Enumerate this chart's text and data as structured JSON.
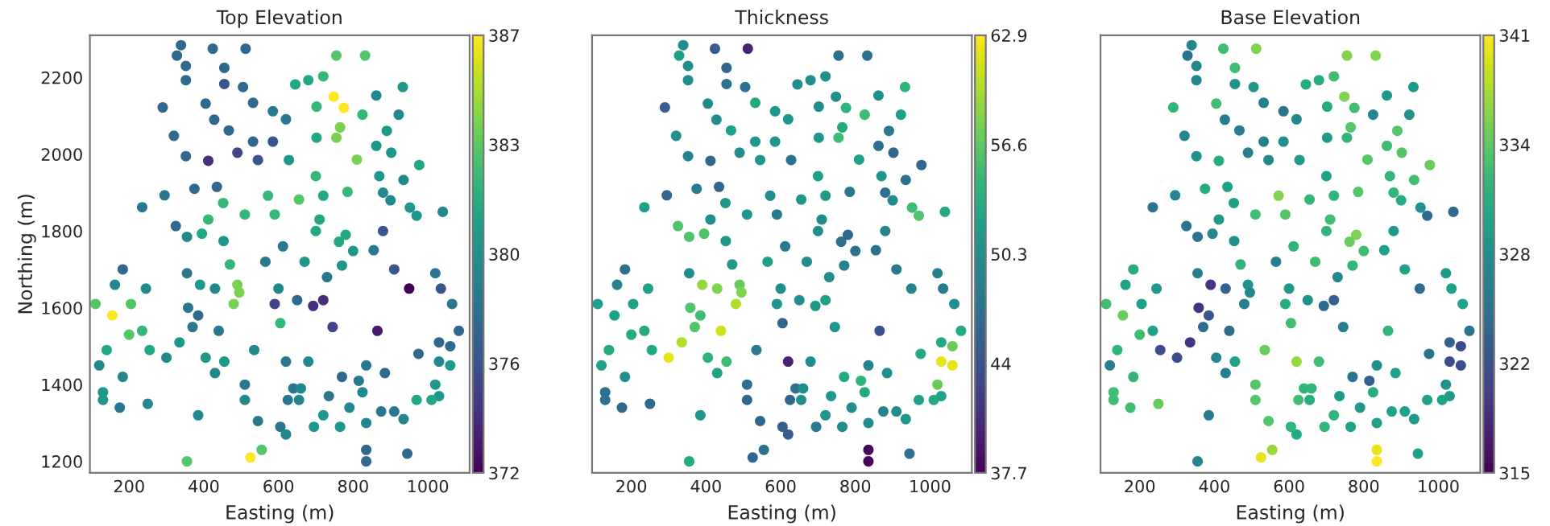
{
  "chart_data": [
    {
      "type": "scatter",
      "title": "Top Elevation",
      "xlabel": "Easting (m)",
      "ylabel": "Northing (m)",
      "x": [
        339,
        424,
        512,
        328,
        755,
        832,
        352,
        455,
        352,
        455,
        505,
        645,
        680,
        720,
        933,
        748,
        862,
        290,
        405,
        532,
        585,
        702,
        775,
        825,
        922,
        428,
        620,
        467,
        320,
        765,
        890,
        755,
        702,
        532,
        585,
        862,
        902,
        412,
        490,
        545,
        628,
        810,
        977,
        352,
        700,
        870,
        935,
        375,
        435,
        295,
        235,
        452,
        572,
        655,
        720,
        785,
        880,
        900,
        952,
        1040,
        970,
        412,
        510,
        590,
        325,
        710,
        355,
        395,
        453,
        612,
        700,
        762,
        780,
        880,
        855,
        800,
        183,
        355,
        470,
        565,
        910,
        1020,
        162,
        390,
        490,
        430,
        495,
        950,
        1035,
        110,
        155,
        205,
        358,
        480,
        590,
        693,
        1065,
        1083,
        200,
        255,
        335,
        300,
        385,
        440,
        605,
        745,
        865,
        1030,
        1060,
        1030,
        1060,
        975,
        140,
        120,
        183,
        405,
        455,
        430,
        535,
        620,
        680,
        835,
        885,
        770,
        815,
        1020,
        1030,
        510,
        640,
        660,
        130,
        130,
        175,
        250,
        510,
        625,
        735,
        655,
        825,
        970,
        1010,
        385,
        545,
        720,
        790,
        875,
        910,
        935,
        835,
        605,
        620,
        695,
        765,
        355,
        525,
        555,
        835,
        835,
        945,
        720,
        600,
        650,
        730,
        770,
        670,
        245,
        235,
        370
      ],
      "values": [
        2284,
        2275,
        2275,
        2257,
        2257,
        2257,
        2230,
        2225,
        2193,
        2183,
        2175,
        2182,
        2193,
        2203,
        2175,
        2150,
        2153,
        2122,
        2132,
        2134,
        2112,
        2124,
        2121,
        2103,
        2103,
        2090,
        2091,
        2062,
        2048,
        2070,
        2061,
        2043,
        2043,
        2033,
        2033,
        2022,
        2004,
        1983,
        2004,
        1985,
        1985,
        1986,
        1972,
        1995,
        1943,
        1943,
        1933,
        1910,
        1915,
        1893,
        1862,
        1873,
        1892,
        1882,
        1892,
        1902,
        1900,
        1880,
        1861,
        1850,
        1840,
        1830,
        1843,
        1843,
        1813,
        1830,
        1785,
        1793,
        1774,
        1760,
        1800,
        1772,
        1790,
        1800,
        1750,
        1748,
        1700,
        1690,
        1713,
        1720,
        1700,
        1690,
        1660,
        1660,
        1660,
        1650,
        1640,
        1650,
        1650,
        1610,
        1580,
        1610,
        1600,
        1610,
        1610,
        1605,
        1610,
        1540,
        1530,
        1490,
        1510,
        1470,
        1580,
        1540,
        1560,
        1550,
        1540,
        1510,
        1500,
        1460,
        1450,
        1480,
        1490,
        1450,
        1420,
        1470,
        1460,
        1430,
        1490,
        1460,
        1460,
        1450,
        1430,
        1420,
        1410,
        1400,
        1370,
        1400,
        1390,
        1390,
        1380,
        1360,
        1340,
        1350,
        1360,
        1360,
        1370,
        1360,
        1380,
        1360,
        1360,
        1320,
        1305,
        1320,
        1340,
        1330,
        1330,
        1310,
        1300,
        1290,
        1270,
        1290,
        1290,
        1200,
        1210,
        1230,
        1230,
        1200,
        1220,
        1620,
        1650,
        1620,
        1680,
        1710,
        1720,
        1650,
        1540,
        1550
      ],
      "cvalues": [
        377,
        377,
        377,
        377,
        383,
        383,
        377,
        377,
        377,
        376,
        377,
        381,
        381,
        382,
        380,
        387,
        379,
        377,
        377,
        377,
        378,
        382,
        387,
        382,
        379,
        377,
        378,
        377,
        377,
        384,
        380,
        384,
        381,
        377,
        376,
        380,
        380,
        374,
        375,
        376,
        380,
        384,
        381,
        377,
        382,
        380,
        379,
        377,
        377,
        378,
        378,
        382,
        382,
        383,
        381,
        382,
        379,
        379,
        380,
        379,
        380,
        382,
        382,
        382,
        377,
        381,
        379,
        381,
        380,
        378,
        381,
        381,
        381,
        376,
        378,
        380,
        377,
        378,
        382,
        378,
        376,
        378,
        379,
        380,
        384,
        379,
        384,
        372,
        376,
        383,
        387,
        383,
        378,
        384,
        375,
        374,
        378,
        377,
        383,
        381,
        380,
        379,
        377,
        378,
        382,
        375,
        373,
        377,
        377,
        379,
        380,
        377,
        381,
        379,
        379,
        380,
        380,
        379,
        379,
        378,
        379,
        378,
        377,
        377,
        378,
        380,
        380,
        378,
        378,
        379,
        380,
        380,
        378,
        379,
        379,
        378,
        378,
        379,
        379,
        381,
        381,
        379,
        378,
        380,
        379,
        378,
        378,
        379,
        379,
        378,
        379,
        380,
        380,
        383,
        387,
        383,
        377,
        377,
        377,
        374,
        379,
        377,
        378,
        380,
        380,
        379,
        382,
        378
      ],
      "clim": [
        372,
        387
      ],
      "cticks": [
        372,
        {
          "value": 375.75,
          "label": "376"
        },
        {
          "value": 379.5,
          "label": "380"
        },
        {
          "value": 383.25,
          "label": "383"
        },
        387
      ],
      "xlim": [
        95,
        1112
      ],
      "ylim": [
        1170,
        2310
      ],
      "xticks": [
        200,
        400,
        600,
        800,
        1000
      ],
      "yticks": [
        1200,
        1400,
        1600,
        1800,
        2000,
        2200
      ]
    },
    {
      "type": "scatter",
      "title": "Thickness",
      "xlabel": "Easting (m)",
      "tick_labels": "x",
      "x": [
        339,
        424,
        512,
        328,
        755,
        832,
        352,
        455,
        352,
        455,
        505,
        645,
        680,
        720,
        933,
        748,
        862,
        290,
        405,
        532,
        585,
        702,
        775,
        825,
        922,
        428,
        620,
        467,
        320,
        765,
        890,
        755,
        702,
        532,
        585,
        862,
        902,
        412,
        490,
        545,
        628,
        810,
        977,
        352,
        700,
        870,
        935,
        375,
        435,
        295,
        235,
        452,
        572,
        655,
        720,
        785,
        880,
        900,
        952,
        1040,
        970,
        412,
        510,
        590,
        325,
        710,
        355,
        395,
        453,
        612,
        700,
        762,
        780,
        880,
        855,
        800,
        183,
        355,
        470,
        565,
        910,
        1020,
        162,
        390,
        490,
        430,
        495,
        950,
        1035,
        110,
        155,
        205,
        358,
        480,
        590,
        693,
        1065,
        1083,
        200,
        255,
        335,
        300,
        385,
        440,
        605,
        745,
        865,
        1030,
        1060,
        1030,
        1060,
        975,
        140,
        120,
        183,
        405,
        455,
        430,
        535,
        620,
        680,
        835,
        885,
        770,
        815,
        1020,
        1030,
        510,
        640,
        660,
        130,
        130,
        175,
        250,
        510,
        625,
        735,
        655,
        825,
        970,
        1010,
        385,
        545,
        720,
        790,
        875,
        910,
        935,
        835,
        605,
        620,
        695,
        765,
        355,
        525,
        555,
        835,
        835,
        945,
        720,
        600,
        650,
        730,
        770,
        670,
        245,
        235,
        370
      ],
      "values": [
        2284,
        2275,
        2275,
        2257,
        2257,
        2257,
        2230,
        2225,
        2193,
        2183,
        2175,
        2182,
        2193,
        2203,
        2175,
        2150,
        2153,
        2122,
        2132,
        2134,
        2112,
        2124,
        2121,
        2103,
        2103,
        2090,
        2091,
        2062,
        2048,
        2070,
        2061,
        2043,
        2043,
        2033,
        2033,
        2022,
        2004,
        1983,
        2004,
        1985,
        1985,
        1986,
        1972,
        1995,
        1943,
        1943,
        1933,
        1910,
        1915,
        1893,
        1862,
        1873,
        1892,
        1882,
        1892,
        1902,
        1900,
        1880,
        1861,
        1850,
        1840,
        1830,
        1843,
        1843,
        1813,
        1830,
        1785,
        1793,
        1774,
        1760,
        1800,
        1772,
        1790,
        1800,
        1750,
        1748,
        1700,
        1690,
        1713,
        1720,
        1700,
        1690,
        1660,
        1660,
        1660,
        1650,
        1640,
        1650,
        1650,
        1610,
        1580,
        1610,
        1600,
        1610,
        1610,
        1605,
        1610,
        1540,
        1530,
        1490,
        1510,
        1470,
        1580,
        1540,
        1560,
        1550,
        1540,
        1510,
        1500,
        1460,
        1450,
        1480,
        1490,
        1450,
        1420,
        1470,
        1460,
        1430,
        1490,
        1460,
        1460,
        1450,
        1430,
        1420,
        1410,
        1400,
        1370,
        1400,
        1390,
        1390,
        1380,
        1360,
        1340,
        1350,
        1360,
        1360,
        1370,
        1360,
        1380,
        1360,
        1360,
        1320,
        1305,
        1320,
        1340,
        1330,
        1330,
        1310,
        1300,
        1290,
        1270,
        1290,
        1290,
        1200,
        1210,
        1230,
        1230,
        1200,
        1220,
        1620,
        1650,
        1620,
        1680,
        1710,
        1720,
        1650,
        1540,
        1550
      ],
      "cvalues": [
        50,
        45,
        40,
        52,
        47,
        47,
        50,
        46,
        50,
        47,
        47,
        50,
        50,
        50,
        54,
        50,
        50,
        45,
        50,
        53,
        51,
        50,
        54,
        55,
        52,
        50,
        51,
        52,
        50,
        53,
        48,
        55,
        51,
        51,
        51,
        47,
        46,
        46,
        50,
        51,
        47,
        52,
        46,
        49,
        52,
        51,
        47,
        48,
        46,
        46,
        52,
        51,
        50,
        51,
        51,
        48,
        47,
        50,
        55,
        53,
        56,
        50,
        51,
        48,
        56,
        50,
        56,
        56,
        51,
        48,
        50,
        47,
        46,
        49,
        47,
        47,
        47,
        50,
        51,
        52,
        48,
        49,
        49,
        59,
        57,
        58,
        58,
        49,
        48,
        52,
        52,
        52,
        56,
        60,
        51,
        51,
        50,
        53,
        53,
        53,
        60,
        62,
        55,
        61,
        46,
        51,
        44,
        53,
        57,
        62,
        62,
        53,
        53,
        52,
        50,
        54,
        55,
        52,
        48,
        40,
        50,
        49,
        50,
        53,
        54,
        57,
        52,
        47,
        47,
        50,
        47,
        47,
        46,
        46,
        46,
        46,
        51,
        50,
        53,
        52,
        53,
        51,
        46,
        51,
        50,
        49,
        50,
        51,
        50,
        45,
        45,
        48,
        50,
        53,
        46,
        47,
        38,
        38,
        47,
        52,
        50,
        50,
        50,
        49,
        50,
        52,
        53,
        56
      ],
      "clim": [
        37.7,
        62.9
      ],
      "cticks": [
        37.7,
        44,
        50.3,
        56.6,
        62.9
      ],
      "xlim": [
        95,
        1112
      ],
      "ylim": [
        1170,
        2310
      ],
      "xticks": [
        200,
        400,
        600,
        800,
        1000
      ],
      "yticks": [
        1200,
        1400,
        1600,
        1800,
        2000,
        2200
      ]
    },
    {
      "type": "scatter",
      "title": "Base Elevation",
      "xlabel": "Easting (m)",
      "tick_labels": "x",
      "x": [
        339,
        424,
        512,
        328,
        755,
        832,
        352,
        455,
        352,
        455,
        505,
        645,
        680,
        720,
        933,
        748,
        862,
        290,
        405,
        532,
        585,
        702,
        775,
        825,
        922,
        428,
        620,
        467,
        320,
        765,
        890,
        755,
        702,
        532,
        585,
        862,
        902,
        412,
        490,
        545,
        628,
        810,
        977,
        352,
        700,
        870,
        935,
        375,
        435,
        295,
        235,
        452,
        572,
        655,
        720,
        785,
        880,
        900,
        952,
        1040,
        970,
        412,
        510,
        590,
        325,
        710,
        355,
        395,
        453,
        612,
        700,
        762,
        780,
        880,
        855,
        800,
        183,
        355,
        470,
        565,
        910,
        1020,
        162,
        390,
        490,
        430,
        495,
        950,
        1035,
        110,
        155,
        205,
        358,
        480,
        590,
        693,
        1065,
        1083,
        200,
        255,
        335,
        300,
        385,
        440,
        605,
        745,
        865,
        1030,
        1060,
        1030,
        1060,
        975,
        140,
        120,
        183,
        405,
        455,
        430,
        535,
        620,
        680,
        835,
        885,
        770,
        815,
        1020,
        1030,
        510,
        640,
        660,
        130,
        130,
        175,
        250,
        510,
        625,
        735,
        655,
        825,
        970,
        1010,
        385,
        545,
        720,
        790,
        875,
        910,
        935,
        835,
        605,
        620,
        695,
        765,
        355,
        525,
        555,
        835,
        835,
        945,
        720,
        600,
        650,
        730,
        770,
        670,
        245,
        235,
        370
      ],
      "values": [
        2284,
        2275,
        2275,
        2257,
        2257,
        2257,
        2230,
        2225,
        2193,
        2183,
        2175,
        2182,
        2193,
        2203,
        2175,
        2150,
        2153,
        2122,
        2132,
        2134,
        2112,
        2124,
        2121,
        2103,
        2103,
        2090,
        2091,
        2062,
        2048,
        2070,
        2061,
        2043,
        2043,
        2033,
        2033,
        2022,
        2004,
        1983,
        2004,
        1985,
        1985,
        1986,
        1972,
        1995,
        1943,
        1943,
        1933,
        1910,
        1915,
        1893,
        1862,
        1873,
        1892,
        1882,
        1892,
        1902,
        1900,
        1880,
        1861,
        1850,
        1840,
        1830,
        1843,
        1843,
        1813,
        1830,
        1785,
        1793,
        1774,
        1760,
        1800,
        1772,
        1790,
        1800,
        1750,
        1748,
        1700,
        1690,
        1713,
        1720,
        1700,
        1690,
        1660,
        1660,
        1660,
        1650,
        1640,
        1650,
        1650,
        1610,
        1580,
        1610,
        1600,
        1610,
        1610,
        1605,
        1610,
        1540,
        1530,
        1490,
        1510,
        1470,
        1580,
        1540,
        1560,
        1550,
        1540,
        1510,
        1500,
        1460,
        1450,
        1480,
        1490,
        1450,
        1420,
        1470,
        1460,
        1430,
        1490,
        1460,
        1460,
        1450,
        1430,
        1420,
        1410,
        1400,
        1370,
        1400,
        1390,
        1390,
        1380,
        1360,
        1340,
        1350,
        1360,
        1360,
        1370,
        1360,
        1380,
        1360,
        1360,
        1320,
        1305,
        1320,
        1340,
        1330,
        1330,
        1310,
        1300,
        1290,
        1270,
        1290,
        1290,
        1200,
        1210,
        1230,
        1230,
        1200,
        1220,
        1620,
        1650,
        1620,
        1680,
        1710,
        1720,
        1650,
        1540,
        1550
      ],
      "cvalues": [
        327,
        333,
        336,
        325,
        336,
        336,
        327,
        333,
        327,
        328,
        329,
        331,
        331,
        333,
        329,
        336,
        329,
        332,
        333,
        326,
        325,
        331,
        333,
        327,
        328,
        326,
        327,
        326,
        327,
        334,
        334,
        332,
        329,
        326,
        328,
        333,
        334,
        331,
        326,
        327,
        329,
        334,
        335,
        328,
        330,
        332,
        333,
        331,
        330,
        327,
        325,
        330,
        336,
        332,
        332,
        334,
        332,
        331,
        328,
        324,
        324,
        329,
        333,
        334,
        325,
        333,
        325,
        327,
        328,
        332,
        332,
        335,
        336,
        329,
        330,
        333,
        331,
        326,
        332,
        326,
        330,
        329,
        330,
        319,
        328,
        323,
        327,
        324,
        330,
        333,
        335,
        330,
        319,
        326,
        331,
        324,
        330,
        325,
        333,
        321,
        319,
        321,
        322,
        324,
        333,
        326,
        332,
        323,
        321,
        321,
        321,
        325,
        332,
        326,
        332,
        327,
        330,
        326,
        335,
        337,
        333,
        328,
        330,
        325,
        323,
        328,
        329,
        334,
        332,
        332,
        333,
        333,
        333,
        335,
        334,
        333,
        329,
        331,
        331,
        330,
        330,
        326,
        334,
        332,
        329,
        330,
        330,
        329,
        330,
        332,
        331,
        332,
        330,
        327,
        340,
        337,
        340,
        341,
        330,
        323,
        329,
        328,
        327,
        332,
        333,
        329,
        330,
        324
      ],
      "clim": [
        315,
        341
      ],
      "cticks": [
        315,
        {
          "value": 321.5,
          "label": "322"
        },
        328,
        {
          "value": 334.5,
          "label": "334"
        },
        341
      ],
      "xlim": [
        95,
        1112
      ],
      "ylim": [
        1170,
        2310
      ],
      "xticks": [
        200,
        400,
        600,
        800,
        1000
      ],
      "yticks": [
        1200,
        1400,
        1600,
        1800,
        2000,
        2200
      ]
    }
  ]
}
